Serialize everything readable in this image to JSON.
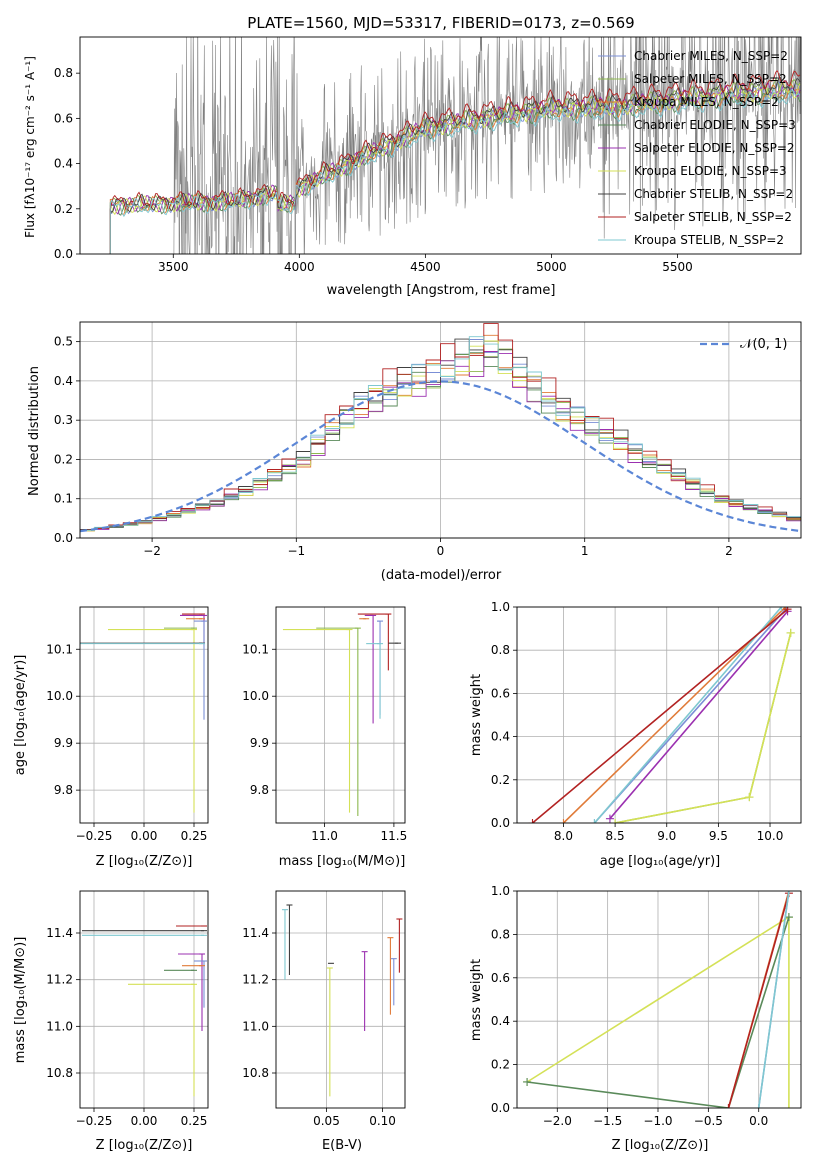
{
  "chart_data": [
    {
      "type": "line",
      "title": "PLATE=1560, MJD=53317, FIBERID=0173, z=0.569",
      "xlabel": "wavelength [Angstrom, rest frame]",
      "ylabel": "Flux [fλ10⁻¹⁷ erg cm⁻² s⁻¹ A⁻¹]",
      "xlim": [
        3130,
        5990
      ],
      "ylim": [
        0,
        0.96
      ],
      "xticks": [
        3500,
        4000,
        4500,
        5000,
        5500
      ],
      "yticks": [
        0.0,
        0.2,
        0.4,
        0.6,
        0.8
      ],
      "grid": false,
      "legend_position": "top-right",
      "data_series_name": "observed spectrum",
      "data_color": "#808080",
      "model_start": 3250,
      "model_continuum": {
        "x": [
          3250,
          3500,
          3750,
          4000,
          4250,
          4500,
          4750,
          5000,
          5250,
          5500,
          5750,
          5990
        ],
        "y": [
          0.22,
          0.23,
          0.24,
          0.3,
          0.44,
          0.57,
          0.62,
          0.66,
          0.67,
          0.7,
          0.73,
          0.75
        ]
      },
      "series": [
        {
          "name": "Chabrier MILES, N_SSP=2",
          "color": "#7b8fd6",
          "scale": 0.97
        },
        {
          "name": "Salpeter MILES, N_SSP=2",
          "color": "#8db84f",
          "scale": 0.99
        },
        {
          "name": "Kroupa MILES, N_SSP=2",
          "color": "#e07b39",
          "scale": 0.96
        },
        {
          "name": "Chabrier ELODIE, N_SSP=3",
          "color": "#5a8a5a",
          "scale": 0.95
        },
        {
          "name": "Salpeter ELODIE, N_SSP=2",
          "color": "#9b30b0",
          "scale": 0.98
        },
        {
          "name": "Kroupa ELODIE, N_SSP=3",
          "color": "#d4e157",
          "scale": 0.97
        },
        {
          "name": "Chabrier STELIB, N_SSP=2",
          "color": "#404040",
          "scale": 1.0
        },
        {
          "name": "Salpeter STELIB, N_SSP=2",
          "color": "#b22222",
          "scale": 1.04
        },
        {
          "name": "Kroupa STELIB, N_SSP=2",
          "color": "#7fc8d0",
          "scale": 0.93
        }
      ]
    },
    {
      "type": "line",
      "xlabel": "(data-model)/error",
      "ylabel": "Normed distribution",
      "xlim": [
        -2.5,
        2.5
      ],
      "ylim": [
        0,
        0.55
      ],
      "xticks": [
        -2,
        -1,
        0,
        1,
        2
      ],
      "yticks": [
        0.0,
        0.1,
        0.2,
        0.3,
        0.4,
        0.5
      ],
      "grid": true,
      "legend_position": "top-right",
      "reference_curve": {
        "name": "𝒩(0, 1)",
        "color": "#5b86d6",
        "style": "dashed"
      },
      "bin_edges_start": -2.5,
      "bin_width": 0.1,
      "hist_base": [
        0.02,
        0.025,
        0.03,
        0.035,
        0.04,
        0.05,
        0.06,
        0.07,
        0.08,
        0.09,
        0.11,
        0.12,
        0.14,
        0.16,
        0.18,
        0.2,
        0.24,
        0.28,
        0.31,
        0.34,
        0.36,
        0.38,
        0.4,
        0.41,
        0.42,
        0.44,
        0.46,
        0.47,
        0.49,
        0.46,
        0.42,
        0.39,
        0.36,
        0.33,
        0.31,
        0.29,
        0.27,
        0.25,
        0.22,
        0.2,
        0.18,
        0.16,
        0.14,
        0.12,
        0.1,
        0.09,
        0.08,
        0.07,
        0.06,
        0.05
      ],
      "series": [
        {
          "name": "Chabrier MILES",
          "color": "#7b8fd6",
          "scale": 1.0
        },
        {
          "name": "Salpeter MILES",
          "color": "#8db84f",
          "scale": 0.97
        },
        {
          "name": "Kroupa MILES",
          "color": "#e07b39",
          "scale": 0.98
        },
        {
          "name": "Chabrier ELODIE",
          "color": "#5a8a5a",
          "scale": 0.96
        },
        {
          "name": "Salpeter ELODIE",
          "color": "#9b30b0",
          "scale": 0.95
        },
        {
          "name": "Kroupa ELODIE",
          "color": "#d4e157",
          "scale": 0.98
        },
        {
          "name": "Chabrier STELIB",
          "color": "#404040",
          "scale": 1.02
        },
        {
          "name": "Salpeter STELIB",
          "color": "#b22222",
          "scale": 1.05
        },
        {
          "name": "Kroupa STELIB",
          "color": "#7fc8d0",
          "scale": 1.01
        }
      ]
    },
    {
      "type": "scatter",
      "xlabel": "Z [log₁₀(Z/Z⊙)]",
      "ylabel": "age  [log₁₀(age/yr)]",
      "xlim": [
        -0.32,
        0.32
      ],
      "ylim": [
        9.73,
        10.19
      ],
      "xticks": [
        -0.25,
        0.0,
        0.25
      ],
      "yticks": [
        9.8,
        9.9,
        10.0,
        10.1
      ],
      "grid": true,
      "marks": [
        {
          "x": 0.29,
          "y": 10.175,
          "color": "#b22222",
          "xerr_lo": 0.1,
          "yerr_lo": 0.0
        },
        {
          "x": 0.3,
          "y": 10.172,
          "color": "#9b30b0",
          "xerr_lo": 0.12,
          "yerr_lo": 0.06
        },
        {
          "x": 0.3,
          "y": 10.16,
          "color": "#7b8fd6",
          "xerr_lo": 0.05,
          "yerr_lo": 0.21
        },
        {
          "x": 0.29,
          "y": 10.165,
          "color": "#e07b39",
          "xerr_lo": 0.08,
          "yerr_lo": 0.0
        },
        {
          "x": 0.25,
          "y": 10.145,
          "color": "#8db84f",
          "xerr_lo": 0.15,
          "yerr_lo": 0.0
        },
        {
          "x": 0.25,
          "y": 10.142,
          "color": "#d4e157",
          "xerr_lo": 0.43,
          "yerr_lo": 0.39
        },
        {
          "x": 0.29,
          "y": 10.113,
          "color": "#404040",
          "xerr_lo": 0.61,
          "yerr_lo": 0.0
        },
        {
          "x": 0.29,
          "y": 10.112,
          "color": "#7fc8d0",
          "xerr_lo": 0.61,
          "yerr_lo": 0.0
        }
      ]
    },
    {
      "type": "scatter",
      "xlabel": "mass [log₁₀(M/M⊙)]",
      "ylabel": "",
      "xlim": [
        10.65,
        11.58
      ],
      "ylim": [
        9.73,
        10.19
      ],
      "xticks": [
        11.0,
        11.5
      ],
      "yticks": [
        9.8,
        9.9,
        10.0,
        10.1
      ],
      "grid": true,
      "marks": [
        {
          "x": 11.46,
          "y": 10.175,
          "color": "#b22222",
          "xerr_lo": 0.22,
          "yerr_lo": 0.12
        },
        {
          "x": 11.35,
          "y": 10.172,
          "color": "#9b30b0",
          "xerr_lo": 0.06,
          "yerr_lo": 0.23
        },
        {
          "x": 11.4,
          "y": 10.16,
          "color": "#7b8fd6",
          "xerr_lo": 0.02,
          "yerr_lo": 0.2
        },
        {
          "x": 11.3,
          "y": 10.165,
          "color": "#e07b39",
          "xerr_lo": 0.05,
          "yerr_lo": 0.0
        },
        {
          "x": 11.24,
          "y": 10.145,
          "color": "#8db84f",
          "xerr_lo": 0.3,
          "yerr_lo": 0.4
        },
        {
          "x": 11.18,
          "y": 10.142,
          "color": "#d4e157",
          "xerr_lo": 0.48,
          "yerr_lo": 0.39
        },
        {
          "x": 11.53,
          "y": 10.113,
          "color": "#404040",
          "xerr_lo": 0.07,
          "yerr_lo": 0.0
        },
        {
          "x": 11.4,
          "y": 10.112,
          "color": "#7fc8d0",
          "xerr_lo": 0.1,
          "yerr_lo": 0.16
        }
      ]
    },
    {
      "type": "line",
      "xlabel": "age  [log₁₀(age/yr)]",
      "ylabel": "mass weight",
      "xlim": [
        7.55,
        10.3
      ],
      "ylim": [
        0,
        1.0
      ],
      "xticks": [
        8.0,
        8.5,
        9.0,
        9.5,
        10.0
      ],
      "yticks": [
        0.0,
        0.2,
        0.4,
        0.6,
        0.8,
        1.0
      ],
      "grid": true,
      "series": [
        {
          "color": "#7b8fd6",
          "x": [
            8.3,
            10.17
          ],
          "y": [
            0.0,
            1.0
          ]
        },
        {
          "color": "#e07b39",
          "x": [
            8.0,
            10.15
          ],
          "y": [
            0.0,
            1.0
          ]
        },
        {
          "color": "#7fc8d0",
          "x": [
            8.3,
            10.11
          ],
          "y": [
            0.0,
            1.0
          ]
        },
        {
          "color": "#9b30b0",
          "x": [
            8.45,
            10.17
          ],
          "y": [
            0.02,
            0.98
          ]
        },
        {
          "color": "#b22222",
          "x": [
            7.7,
            10.17
          ],
          "y": [
            0.0,
            0.99
          ]
        },
        {
          "color": "#8db84f",
          "x": [
            8.5,
            9.8,
            10.2
          ],
          "y": [
            0.0,
            0.12,
            0.88
          ]
        },
        {
          "color": "#d4e157",
          "x": [
            8.5,
            9.8,
            10.2
          ],
          "y": [
            0.0,
            0.12,
            0.88
          ]
        }
      ]
    },
    {
      "type": "scatter",
      "xlabel": "Z [log₁₀(Z/Z⊙)]",
      "ylabel": "mass [log₁₀(M/M⊙)]",
      "xlim": [
        -0.32,
        0.32
      ],
      "ylim": [
        10.65,
        11.58
      ],
      "xticks": [
        -0.25,
        0.0,
        0.25
      ],
      "yticks": [
        10.8,
        11.0,
        11.2,
        11.4
      ],
      "grid": true,
      "marks": [
        {
          "x": 0.3,
          "y": 11.43,
          "color": "#b22222",
          "xerr_lo": 0.14,
          "yerr_lo": 0.0
        },
        {
          "x": 0.3,
          "y": 11.41,
          "color": "#404040",
          "xerr_lo": 0.61,
          "yerr_lo": 0.0
        },
        {
          "x": 0.3,
          "y": 11.39,
          "color": "#7fc8d0",
          "xerr_lo": 0.61,
          "yerr_lo": 0.0
        },
        {
          "x": 0.29,
          "y": 11.31,
          "color": "#9b30b0",
          "xerr_lo": 0.12,
          "yerr_lo": 0.33
        },
        {
          "x": 0.3,
          "y": 11.28,
          "color": "#7b8fd6",
          "xerr_lo": 0.05,
          "yerr_lo": 0.2
        },
        {
          "x": 0.29,
          "y": 11.26,
          "color": "#e07b39",
          "xerr_lo": 0.1,
          "yerr_lo": 0.0
        },
        {
          "x": 0.25,
          "y": 11.24,
          "color": "#5a8a5a",
          "xerr_lo": 0.15,
          "yerr_lo": 0.0
        },
        {
          "x": 0.25,
          "y": 11.18,
          "color": "#d4e157",
          "xerr_lo": 0.33,
          "yerr_lo": 0.48
        }
      ]
    },
    {
      "type": "scatter",
      "xlabel": "E(B-V)",
      "ylabel": "",
      "xlim": [
        0.005,
        0.12
      ],
      "ylim": [
        10.65,
        11.58
      ],
      "xticks": [
        0.05,
        0.1
      ],
      "yticks": [
        10.8,
        11.0,
        11.2,
        11.4
      ],
      "grid": true,
      "marks": [
        {
          "x": 0.013,
          "y": 11.5,
          "color": "#7fc8d0",
          "yerr_lo": 0.3
        },
        {
          "x": 0.017,
          "y": 11.52,
          "color": "#404040",
          "yerr_lo": 0.3
        },
        {
          "x": 0.053,
          "y": 11.25,
          "color": "#d4e157",
          "yerr_lo": 0.55
        },
        {
          "x": 0.054,
          "y": 11.27,
          "color": "#404040",
          "yerr_lo": 0.0
        },
        {
          "x": 0.084,
          "y": 11.32,
          "color": "#9b30b0",
          "yerr_lo": 0.34
        },
        {
          "x": 0.107,
          "y": 11.38,
          "color": "#e07b39",
          "yerr_lo": 0.33
        },
        {
          "x": 0.11,
          "y": 11.29,
          "color": "#7b8fd6",
          "yerr_lo": 0.2
        },
        {
          "x": 0.115,
          "y": 11.46,
          "color": "#b22222",
          "yerr_lo": 0.23
        }
      ]
    },
    {
      "type": "line",
      "xlabel": "Z [log₁₀(Z/Z⊙)]",
      "ylabel": "mass weight",
      "xlim": [
        -2.4,
        0.42
      ],
      "ylim": [
        0,
        1.0
      ],
      "xticks": [
        -2.0,
        -1.5,
        -1.0,
        -0.5,
        0.0
      ],
      "yticks": [
        0.0,
        0.2,
        0.4,
        0.6,
        0.8,
        1.0
      ],
      "grid": true,
      "series": [
        {
          "color": "#d4e157",
          "x": [
            -2.3,
            0.3
          ],
          "y": [
            0.12,
            0.88
          ]
        },
        {
          "color": "#d4e157",
          "x": [
            0.3,
            0.3
          ],
          "y": [
            0.88,
            0.0
          ]
        },
        {
          "color": "#5a8a5a",
          "x": [
            -2.3,
            -0.3,
            0.3
          ],
          "y": [
            0.12,
            0.0,
            0.88
          ]
        },
        {
          "color": "#e07b39",
          "x": [
            -0.3,
            0.3
          ],
          "y": [
            0.0,
            1.0
          ]
        },
        {
          "color": "#b22222",
          "x": [
            -0.3,
            0.3
          ],
          "y": [
            0.0,
            0.99
          ]
        },
        {
          "color": "#7b8fd6",
          "x": [
            0.0,
            0.3
          ],
          "y": [
            0.0,
            1.0
          ]
        },
        {
          "color": "#7fc8d0",
          "x": [
            0.0,
            0.3
          ],
          "y": [
            0.0,
            1.0
          ]
        }
      ]
    }
  ]
}
